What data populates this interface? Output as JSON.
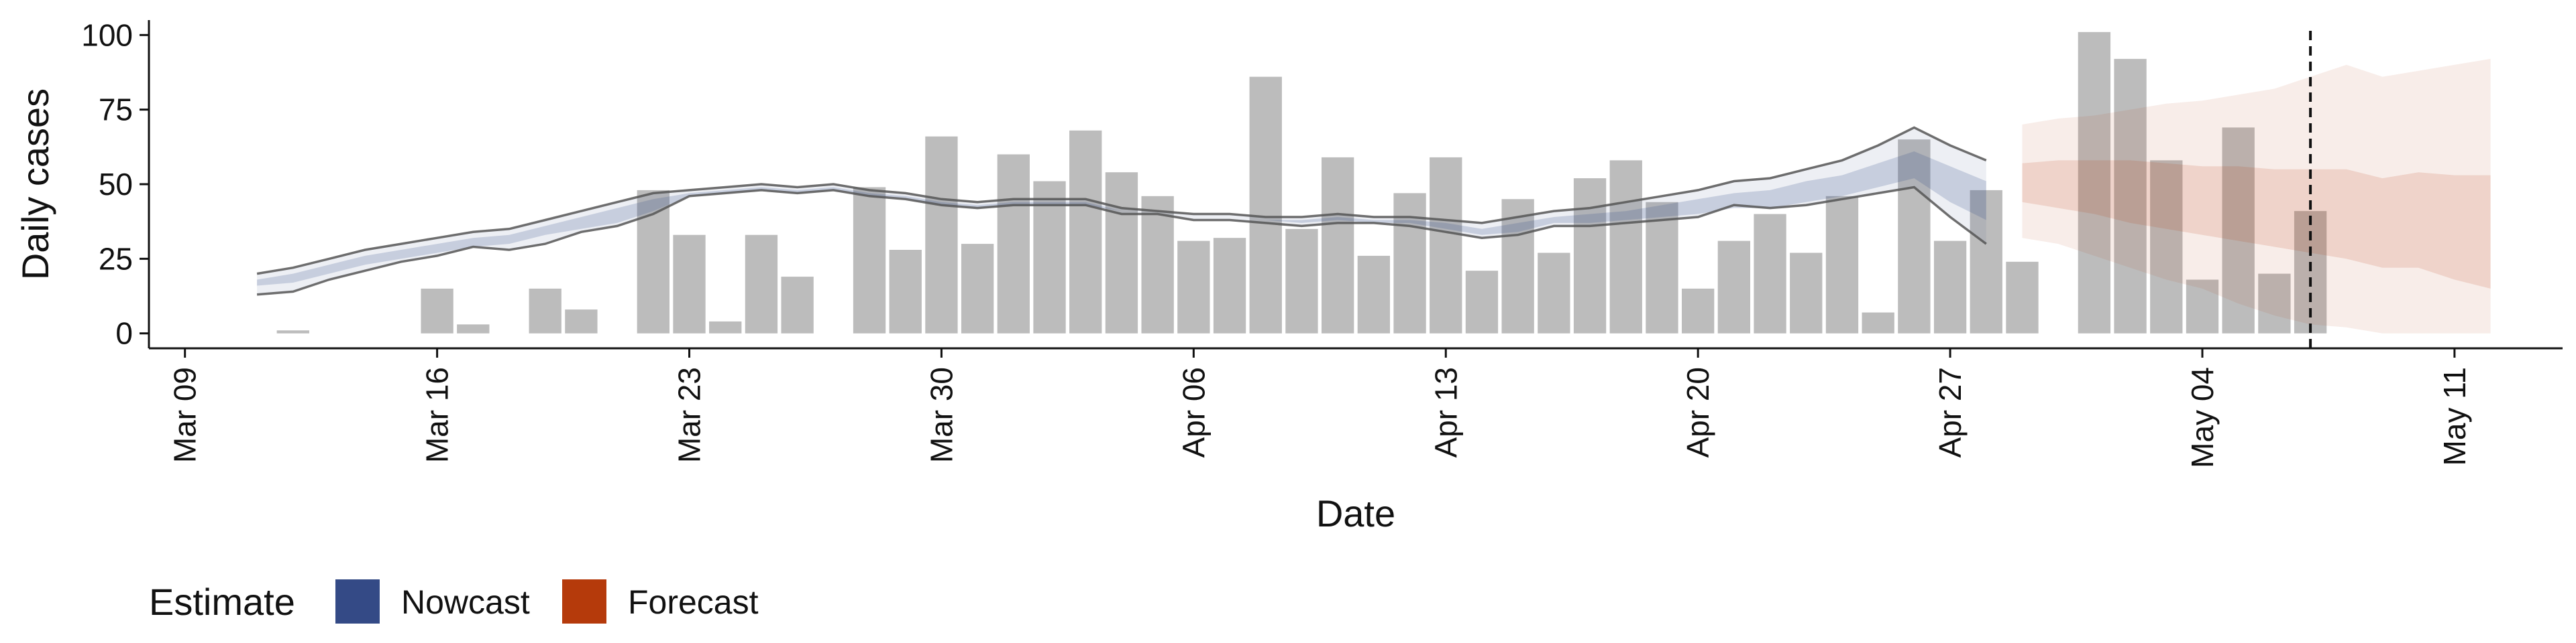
{
  "chart_data": {
    "type": "bar",
    "xlabel": "Date",
    "ylabel": "Daily cases",
    "ylim": [
      -5,
      105
    ],
    "y_ticks": [
      0,
      25,
      50,
      75,
      100
    ],
    "x_range": [
      "2020-03-08",
      "2020-05-14"
    ],
    "x_ticks": [
      {
        "date": "2020-03-09",
        "label": "Mar 09"
      },
      {
        "date": "2020-03-16",
        "label": "Mar 16"
      },
      {
        "date": "2020-03-23",
        "label": "Mar 23"
      },
      {
        "date": "2020-03-30",
        "label": "Mar 30"
      },
      {
        "date": "2020-04-06",
        "label": "Apr 06"
      },
      {
        "date": "2020-04-13",
        "label": "Apr 13"
      },
      {
        "date": "2020-04-20",
        "label": "Apr 20"
      },
      {
        "date": "2020-04-27",
        "label": "Apr 27"
      },
      {
        "date": "2020-05-04",
        "label": "May 04"
      },
      {
        "date": "2020-05-11",
        "label": "May 11"
      }
    ],
    "grid": false,
    "legend": {
      "placement": "bottom-left",
      "title": "Estimate",
      "entries": [
        {
          "name": "Nowcast",
          "color": "#344a86"
        },
        {
          "name": "Forecast",
          "color": "#b53a0b"
        }
      ]
    },
    "colors": {
      "bar": "#bcbcbc",
      "nowcast": "#344a86",
      "forecast": "#b53a0b",
      "outline": "#555555"
    },
    "bars": {
      "name": "Daily cases",
      "x": [
        "2020-03-11",
        "2020-03-12",
        "2020-03-13",
        "2020-03-14",
        "2020-03-15",
        "2020-03-16",
        "2020-03-17",
        "2020-03-18",
        "2020-03-19",
        "2020-03-20",
        "2020-03-21",
        "2020-03-22",
        "2020-03-23",
        "2020-03-24",
        "2020-03-25",
        "2020-03-26",
        "2020-03-27",
        "2020-03-28",
        "2020-03-29",
        "2020-03-30",
        "2020-03-31",
        "2020-04-01",
        "2020-04-02",
        "2020-04-03",
        "2020-04-04",
        "2020-04-05",
        "2020-04-06",
        "2020-04-07",
        "2020-04-08",
        "2020-04-09",
        "2020-04-10",
        "2020-04-11",
        "2020-04-12",
        "2020-04-13",
        "2020-04-14",
        "2020-04-15",
        "2020-04-16",
        "2020-04-17",
        "2020-04-18",
        "2020-04-19",
        "2020-04-20",
        "2020-04-21",
        "2020-04-22",
        "2020-04-23",
        "2020-04-24",
        "2020-04-25",
        "2020-04-26",
        "2020-04-27",
        "2020-04-28",
        "2020-04-29",
        "2020-04-30",
        "2020-05-01",
        "2020-05-02",
        "2020-05-03",
        "2020-05-04",
        "2020-05-05",
        "2020-05-06",
        "2020-05-07"
      ],
      "values": [
        0,
        1,
        0,
        0,
        0,
        15,
        3,
        0,
        15,
        8,
        0,
        48,
        33,
        4,
        33,
        19,
        0,
        49,
        28,
        66,
        30,
        60,
        51,
        68,
        54,
        46,
        31,
        32,
        86,
        35,
        59,
        26,
        47,
        59,
        21,
        45,
        27,
        52,
        58,
        44,
        15,
        31,
        40,
        27,
        46,
        7,
        65,
        31,
        48,
        24,
        0,
        101,
        92,
        58,
        18,
        69,
        20,
        41
      ]
    },
    "nowcast": {
      "x": [
        "2020-03-11",
        "2020-03-12",
        "2020-03-13",
        "2020-03-14",
        "2020-03-15",
        "2020-03-16",
        "2020-03-17",
        "2020-03-18",
        "2020-03-19",
        "2020-03-20",
        "2020-03-21",
        "2020-03-22",
        "2020-03-23",
        "2020-03-24",
        "2020-03-25",
        "2020-03-26",
        "2020-03-27",
        "2020-03-28",
        "2020-03-29",
        "2020-03-30",
        "2020-03-31",
        "2020-04-01",
        "2020-04-02",
        "2020-04-03",
        "2020-04-04",
        "2020-04-05",
        "2020-04-06",
        "2020-04-07",
        "2020-04-08",
        "2020-04-09",
        "2020-04-10",
        "2020-04-11",
        "2020-04-12",
        "2020-04-13",
        "2020-04-14",
        "2020-04-15",
        "2020-04-16",
        "2020-04-17",
        "2020-04-18",
        "2020-04-19",
        "2020-04-20",
        "2020-04-21",
        "2020-04-22",
        "2020-04-23",
        "2020-04-24",
        "2020-04-25",
        "2020-04-26",
        "2020-04-27",
        "2020-04-28"
      ],
      "upper_90": [
        20,
        22,
        25,
        28,
        30,
        32,
        34,
        35,
        38,
        41,
        44,
        47,
        48,
        49,
        50,
        49,
        50,
        48,
        47,
        45,
        44,
        45,
        45,
        45,
        42,
        41,
        40,
        40,
        39,
        39,
        40,
        39,
        39,
        38,
        37,
        39,
        41,
        42,
        44,
        46,
        48,
        51,
        52,
        55,
        58,
        63,
        69,
        63,
        58
      ],
      "upper_50": [
        18,
        20,
        23,
        26,
        28,
        30,
        32,
        33,
        36,
        39,
        42,
        45,
        47,
        48,
        49,
        48,
        49,
        47,
        46,
        44,
        43,
        44,
        44,
        44,
        41,
        40,
        39,
        39,
        38,
        38,
        39,
        38,
        38,
        37,
        35,
        37,
        39,
        40,
        41,
        43,
        45,
        47,
        48,
        51,
        53,
        57,
        61,
        56,
        51
      ],
      "lower_50": [
        16,
        17,
        20,
        23,
        25,
        27,
        29,
        30,
        33,
        35,
        37,
        41,
        46,
        47,
        48,
        47,
        48,
        46,
        45,
        43,
        42,
        43,
        43,
        43,
        41,
        40,
        39,
        39,
        38,
        37,
        38,
        37,
        37,
        35,
        33,
        34,
        37,
        37,
        38,
        39,
        40,
        42,
        42,
        44,
        46,
        49,
        52,
        44,
        38
      ],
      "lower_90": [
        13,
        14,
        18,
        21,
        24,
        26,
        29,
        28,
        30,
        34,
        36,
        40,
        46,
        47,
        48,
        47,
        48,
        46,
        45,
        43,
        42,
        43,
        43,
        43,
        40,
        40,
        38,
        38,
        37,
        36,
        37,
        37,
        36,
        34,
        32,
        33,
        36,
        36,
        37,
        38,
        39,
        43,
        42,
        43,
        45,
        47,
        49,
        39,
        30
      ]
    },
    "forecast": {
      "x": [
        "2020-04-29",
        "2020-04-30",
        "2020-05-01",
        "2020-05-02",
        "2020-05-03",
        "2020-05-04",
        "2020-05-05",
        "2020-05-06",
        "2020-05-07",
        "2020-05-08",
        "2020-05-09",
        "2020-05-10",
        "2020-05-11",
        "2020-05-12"
      ],
      "upper_90": [
        70,
        72,
        73,
        75,
        77,
        78,
        80,
        82,
        86,
        90,
        86,
        88,
        90,
        92
      ],
      "upper_50": [
        57,
        58,
        58,
        58,
        57,
        56,
        56,
        55,
        55,
        55,
        52,
        54,
        53,
        53
      ],
      "lower_50": [
        44,
        42,
        40,
        37,
        35,
        33,
        31,
        29,
        27,
        25,
        22,
        22,
        18,
        15
      ],
      "lower_90": [
        32,
        30,
        26,
        22,
        18,
        15,
        10,
        6,
        3,
        2,
        0,
        0,
        0,
        0
      ]
    },
    "annotations": [
      {
        "type": "vline",
        "x": "2020-05-07",
        "style": "dashed"
      }
    ]
  }
}
